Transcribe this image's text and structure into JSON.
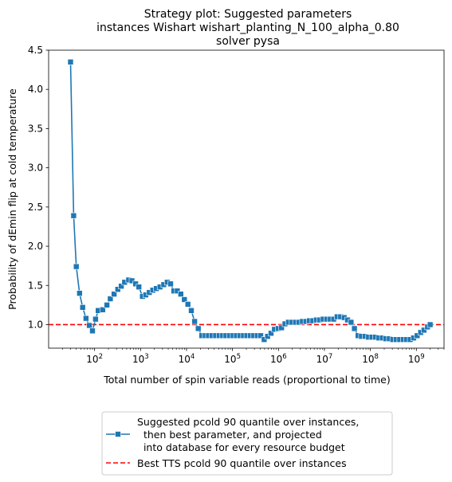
{
  "chart_data": {
    "type": "line",
    "title": [
      "Strategy plot: Suggested parameters",
      "instances Wishart wishart_planting_N_100_alpha_0.80",
      "solver pysa"
    ],
    "xlabel": "Total number of spin variable reads (proportional to time)",
    "ylabel": "Probability of dEmin flip at cold temperature",
    "xscale": "log",
    "xlim": [
      10,
      4000000000.0
    ],
    "ylim": [
      0.7,
      4.5
    ],
    "xticks": [
      {
        "value": 100,
        "base": "10",
        "exp": "2"
      },
      {
        "value": 1000,
        "base": "10",
        "exp": "3"
      },
      {
        "value": 10000,
        "base": "10",
        "exp": "4"
      },
      {
        "value": 100000,
        "base": "10",
        "exp": "5"
      },
      {
        "value": 1000000,
        "base": "10",
        "exp": "6"
      },
      {
        "value": 10000000,
        "base": "10",
        "exp": "7"
      },
      {
        "value": 100000000,
        "base": "10",
        "exp": "8"
      },
      {
        "value": 1000000000,
        "base": "10",
        "exp": "9"
      }
    ],
    "yticks": [
      {
        "value": 1.0,
        "label": "1.0"
      },
      {
        "value": 1.5,
        "label": "1.5"
      },
      {
        "value": 2.0,
        "label": "2.0"
      },
      {
        "value": 2.5,
        "label": "2.5"
      },
      {
        "value": 3.0,
        "label": "3.0"
      },
      {
        "value": 3.5,
        "label": "3.5"
      },
      {
        "value": 4.0,
        "label": "4.0"
      },
      {
        "value": 4.5,
        "label": "4.5"
      }
    ],
    "grid": false,
    "legend_position": "below",
    "series": [
      {
        "name": "Suggested pcold 90 quantile over instances,\n  then best parameter, and projected\n  into database for every resource budget",
        "color": "#1f77b4",
        "marker": "square",
        "points": [
          [
            30,
            4.35
          ],
          [
            35,
            2.39
          ],
          [
            40,
            1.74
          ],
          [
            47,
            1.4
          ],
          [
            55,
            1.22
          ],
          [
            65,
            1.08
          ],
          [
            77,
            0.99
          ],
          [
            90,
            0.92
          ],
          [
            105,
            1.07
          ],
          [
            120,
            1.18
          ],
          [
            150,
            1.19
          ],
          [
            185,
            1.25
          ],
          [
            220,
            1.33
          ],
          [
            265,
            1.39
          ],
          [
            320,
            1.45
          ],
          [
            380,
            1.49
          ],
          [
            450,
            1.54
          ],
          [
            550,
            1.57
          ],
          [
            650,
            1.56
          ],
          [
            780,
            1.52
          ],
          [
            920,
            1.48
          ],
          [
            1100,
            1.36
          ],
          [
            1300,
            1.38
          ],
          [
            1550,
            1.41
          ],
          [
            1850,
            1.44
          ],
          [
            2200,
            1.46
          ],
          [
            2650,
            1.48
          ],
          [
            3200,
            1.51
          ],
          [
            3800,
            1.54
          ],
          [
            4500,
            1.52
          ],
          [
            5300,
            1.43
          ],
          [
            6300,
            1.43
          ],
          [
            7500,
            1.39
          ],
          [
            9000,
            1.32
          ],
          [
            10700,
            1.26
          ],
          [
            12700,
            1.18
          ],
          [
            15000,
            1.04
          ],
          [
            18000,
            0.95
          ],
          [
            21500,
            0.86
          ],
          [
            25500,
            0.86
          ],
          [
            30000,
            0.86
          ],
          [
            36000,
            0.86
          ],
          [
            43000,
            0.86
          ],
          [
            51000,
            0.86
          ],
          [
            61000,
            0.86
          ],
          [
            72000,
            0.86
          ],
          [
            86000,
            0.86
          ],
          [
            103000,
            0.86
          ],
          [
            122000,
            0.86
          ],
          [
            145000,
            0.86
          ],
          [
            173000,
            0.86
          ],
          [
            205000,
            0.86
          ],
          [
            245000,
            0.86
          ],
          [
            290000,
            0.86
          ],
          [
            345000,
            0.86
          ],
          [
            410000,
            0.86
          ],
          [
            490000,
            0.81
          ],
          [
            580000,
            0.85
          ],
          [
            690000,
            0.89
          ],
          [
            820000,
            0.94
          ],
          [
            980000,
            0.95
          ],
          [
            1170000,
            0.96
          ],
          [
            1390000,
            1.01
          ],
          [
            1650000,
            1.03
          ],
          [
            1970000,
            1.03
          ],
          [
            2350000,
            1.03
          ],
          [
            2790000,
            1.03
          ],
          [
            3320000,
            1.04
          ],
          [
            3950000,
            1.04
          ],
          [
            4700000,
            1.05
          ],
          [
            5600000,
            1.05
          ],
          [
            6700000,
            1.06
          ],
          [
            7900000,
            1.06
          ],
          [
            9400000,
            1.07
          ],
          [
            11200000,
            1.07
          ],
          [
            13400000,
            1.07
          ],
          [
            15900000,
            1.07
          ],
          [
            18900000,
            1.1
          ],
          [
            22500000,
            1.1
          ],
          [
            26800000,
            1.09
          ],
          [
            31900000,
            1.06
          ],
          [
            38000000,
            1.03
          ],
          [
            45000000,
            0.95
          ],
          [
            54000000,
            0.86
          ],
          [
            64000000,
            0.85
          ],
          [
            76000000,
            0.85
          ],
          [
            91000000,
            0.84
          ],
          [
            108000000,
            0.84
          ],
          [
            129000000,
            0.84
          ],
          [
            153000000,
            0.83
          ],
          [
            182000000,
            0.83
          ],
          [
            217000000,
            0.82
          ],
          [
            258000000,
            0.82
          ],
          [
            307000000,
            0.81
          ],
          [
            365000000,
            0.81
          ],
          [
            435000000,
            0.81
          ],
          [
            518000000,
            0.81
          ],
          [
            616000000,
            0.81
          ],
          [
            733000000,
            0.81
          ],
          [
            872000000,
            0.83
          ],
          [
            1040000000,
            0.86
          ],
          [
            1240000000,
            0.9
          ],
          [
            1470000000,
            0.93
          ],
          [
            1750000000,
            0.97
          ],
          [
            2000000000,
            1.0
          ]
        ]
      },
      {
        "name": "Best TTS pcold 90 quantile over instances",
        "color": "#ff0000",
        "style": "dashed",
        "y": 1.0
      }
    ]
  }
}
